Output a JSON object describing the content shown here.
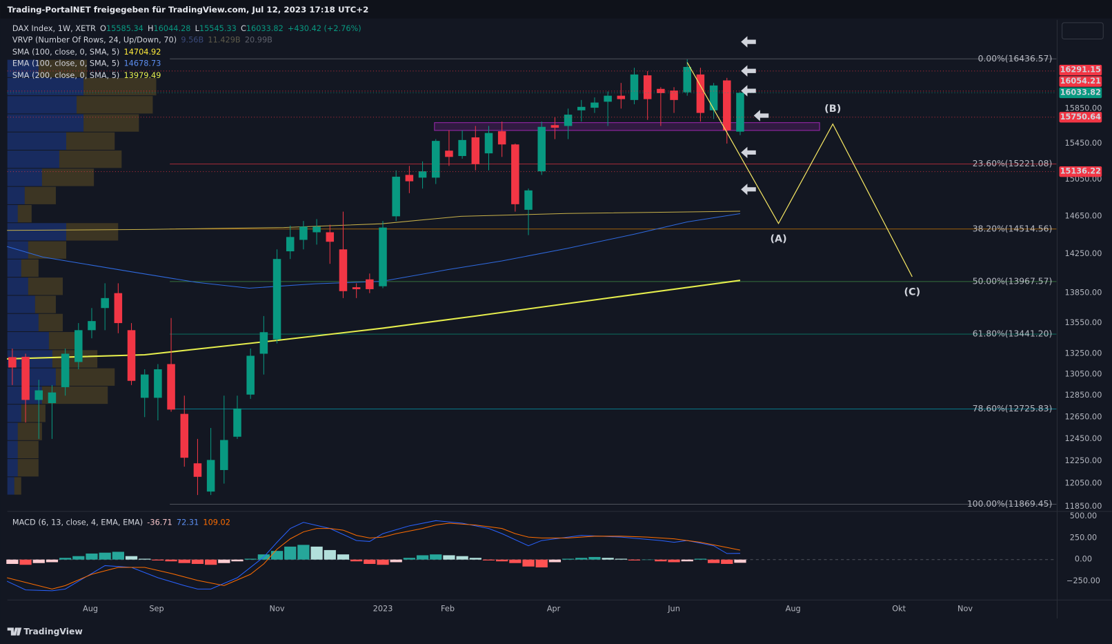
{
  "header": {
    "title": "Trading-PortalNET freigegeben für TradingView.com, Jul 12, 2023 17:18 UTC+2"
  },
  "footer": {
    "brand": "TradingView"
  },
  "chart_data": {
    "type": "candlestick",
    "log_scale": true,
    "legend": {
      "symbol": "DAX Index, 1W, XETR",
      "ohlc_labels": [
        "O",
        "H",
        "L",
        "C"
      ],
      "change": "+430.42 (+2.76%)"
    },
    "vrvp": {
      "name": "VRVP (Number Of Rows, 24, Up/Down, 70)",
      "stats": [
        "9.56B",
        "11.429B",
        "20.99B"
      ],
      "up_color": "#2962ff",
      "down_color": "#fbc02d",
      "up": [
        45,
        110,
        100,
        110,
        85,
        75,
        50,
        25,
        15,
        85,
        30,
        20,
        30,
        40,
        45,
        60,
        65,
        70,
        50,
        20,
        15,
        15,
        15,
        10
      ],
      "down": [
        70,
        105,
        110,
        80,
        70,
        90,
        75,
        45,
        20,
        75,
        55,
        25,
        50,
        30,
        35,
        40,
        65,
        85,
        95,
        35,
        35,
        30,
        30,
        10
      ]
    },
    "colors": {
      "up": "#089981",
      "down": "#f23645"
    },
    "categories": [
      null,
      null,
      null,
      null,
      null,
      null,
      null,
      null,
      null,
      null,
      null,
      null,
      null,
      null,
      null,
      null,
      null,
      null,
      null,
      null,
      null,
      null,
      null,
      null,
      null,
      null,
      null,
      null,
      null,
      null,
      null,
      null,
      null,
      null,
      null,
      null,
      null,
      null,
      null,
      null,
      null,
      null,
      null,
      null,
      null,
      null,
      null,
      null,
      null,
      null,
      null,
      null,
      null,
      null,
      null,
      null
    ],
    "open": [
      13217,
      13220,
      12810,
      12780,
      12930,
      13170,
      13480,
      13700,
      13850,
      13480,
      12830,
      12830,
      13150,
      12680,
      12230,
      11980,
      12170,
      12470,
      12860,
      13250,
      13390,
      14280,
      14400,
      14480,
      14480,
      14300,
      13910,
      13990,
      13920,
      14650,
      15100,
      15070,
      15070,
      15370,
      15310,
      15520,
      15340,
      15590,
      15440,
      14720,
      15140,
      15660,
      15650,
      15830,
      15860,
      15930,
      16000,
      15950,
      16240,
      16080,
      16060,
      16040,
      16250,
      15830,
      16180,
      15585.34
    ],
    "high": [
      13300,
      13250,
      13000,
      12950,
      13300,
      13550,
      13700,
      13950,
      13950,
      13550,
      13100,
      13150,
      13600,
      12850,
      12450,
      12550,
      12850,
      12850,
      13300,
      13620,
      14300,
      14550,
      14600,
      14620,
      14560,
      14700,
      13950,
      14050,
      14600,
      15150,
      15200,
      15250,
      15500,
      15600,
      15600,
      15650,
      15650,
      15700,
      15450,
      14950,
      15700,
      15750,
      15850,
      15950,
      15980,
      16050,
      16150,
      16330,
      16290,
      16100,
      16100,
      16430,
      16330,
      16150,
      16210,
      16044.28
    ],
    "low": [
      12950,
      12600,
      12450,
      12450,
      12850,
      13100,
      13400,
      13480,
      13450,
      12950,
      12650,
      12620,
      12700,
      12200,
      11950,
      11950,
      12050,
      12450,
      12820,
      13050,
      13350,
      14200,
      14300,
      14350,
      14150,
      13800,
      13800,
      13850,
      13900,
      14600,
      14900,
      14950,
      15000,
      15200,
      15280,
      15150,
      15150,
      15300,
      14700,
      14450,
      15100,
      15500,
      15500,
      15700,
      15800,
      15650,
      15850,
      15900,
      15720,
      15650,
      15800,
      16000,
      15700,
      15730,
      15450,
      15545.33
    ],
    "close": [
      13117,
      12810,
      12900,
      12880,
      13250,
      13480,
      13570,
      13800,
      13550,
      12990,
      13050,
      13100,
      12720,
      12280,
      12110,
      12260,
      12440,
      12730,
      13230,
      13460,
      14200,
      14430,
      14540,
      14540,
      14380,
      13870,
      13890,
      13890,
      14530,
      15080,
      15030,
      15140,
      15480,
      15300,
      15490,
      15220,
      15570,
      15440,
      14780,
      14930,
      15640,
      15630,
      15780,
      15870,
      15920,
      16000,
      15960,
      16250,
      15960,
      16030,
      15950,
      16340,
      15800,
      16120,
      15600,
      16033.82
    ],
    "lines": [
      {
        "name": "SMA (100, close, 0, SMA, 5)",
        "color": "#ffeb3b",
        "line_color": "#c9b24a",
        "width": 1,
        "x": [
          -0.4,
          10,
          20.5,
          27.9,
          33.9,
          41.9,
          55
        ],
        "values": [
          14500,
          14510,
          14530,
          14570,
          14650,
          14680,
          14704.92
        ]
      },
      {
        "name": "EMA (100, close, 0, SMA, 5)",
        "color": "#5b8def",
        "line_color": "#2f6ae0",
        "width": 1,
        "x": [
          -0.4,
          2.3,
          8.9,
          13.9,
          17.9,
          22.9,
          27.9,
          32.9,
          37,
          41.9,
          47,
          51,
          55
        ],
        "values": [
          14330,
          14220,
          14070,
          13960,
          13900,
          13945,
          13970,
          14090,
          14180,
          14310,
          14460,
          14590,
          14678.73
        ]
      },
      {
        "name": "SMA (200, close, 0, SMA, 5)",
        "color": "#e6ee4d",
        "line_color": "#e6ee4d",
        "width": 2,
        "x": [
          -0.4,
          10,
          20,
          28,
          35,
          45,
          55
        ],
        "values": [
          13200,
          13240,
          13380,
          13500,
          13620,
          13800,
          13979.49
        ]
      }
    ],
    "fib": {
      "start": 11.9,
      "levels": [
        {
          "value": 16436.57,
          "label": "0.00%(16436.57)",
          "color": "#787b86"
        },
        {
          "value": 15221.08,
          "label": "23.60%(15221.08)",
          "color": "#f23645"
        },
        {
          "value": 14514.56,
          "label": "38.20%(14514.56)",
          "color": "#ff9800"
        },
        {
          "value": 13967.57,
          "label": "50.00%(13967.57)",
          "color": "#4caf50"
        },
        {
          "value": 13441.2,
          "label": "61.80%(13441.20)",
          "color": "#089981"
        },
        {
          "value": 12725.83,
          "label": "78.60%(12725.83)",
          "color": "#00bcd4"
        },
        {
          "value": 11869.45,
          "label": "100.00%(11869.45)",
          "color": "#787b86"
        }
      ]
    },
    "zone": {
      "x": [
        31.9,
        61
      ],
      "y": [
        15599,
        15688
      ],
      "color": "#9c27b0"
    },
    "wave": {
      "color": "#f5e663",
      "x": [
        51,
        57.9,
        62,
        68
      ],
      "y": [
        16394,
        14573,
        15672,
        14017
      ],
      "labels": [
        null,
        "(A)",
        "(B)",
        "(C)"
      ]
    },
    "price_tags": [
      {
        "value": 16291.15,
        "color": "#f23645"
      },
      {
        "value": 16054.21,
        "color": "#f23645"
      },
      {
        "value": 16033.82,
        "color": "#089981"
      },
      {
        "value": 15750.64,
        "color": "#f23645"
      },
      {
        "value": 15136.22,
        "color": "#f23645"
      }
    ],
    "xlim": [
      -0.375,
      78.9
    ],
    "xticks": [
      {
        "value": 5.9,
        "label": "Aug"
      },
      {
        "value": 10.9,
        "label": "Sep"
      },
      {
        "value": 20,
        "label": "Nov"
      },
      {
        "value": 28,
        "label": "2023"
      },
      {
        "value": 32.9,
        "label": "Feb"
      },
      {
        "value": 40.9,
        "label": "Apr"
      },
      {
        "value": 50,
        "label": "Jun"
      },
      {
        "value": 59,
        "label": "Aug"
      },
      {
        "value": 67,
        "label": "Okt"
      },
      {
        "value": 72,
        "label": "Nov"
      }
    ],
    "ylim": [
      11814,
      16912
    ],
    "yticks": [
      {
        "value": 15850,
        "label": "15850.00"
      },
      {
        "value": 15450,
        "label": "15450.00"
      },
      {
        "value": 15050,
        "label": "15050.00"
      },
      {
        "value": 14650,
        "label": "14650.00"
      },
      {
        "value": 14250,
        "label": "14250.00"
      },
      {
        "value": 13850,
        "label": "13850.00"
      },
      {
        "value": 13550,
        "label": "13550.00"
      },
      {
        "value": 13250,
        "label": "13250.00"
      },
      {
        "value": 13050,
        "label": "13050.00"
      },
      {
        "value": 12850,
        "label": "12850.00"
      },
      {
        "value": 12650,
        "label": "12650.00"
      },
      {
        "value": 12450,
        "label": "12450.00"
      },
      {
        "value": 12250,
        "label": "12250.00"
      },
      {
        "value": 12050,
        "label": "12050.00"
      },
      {
        "value": 11850,
        "label": "11850.00"
      }
    ],
    "macd": {
      "name": "MACD (6, 13, close, 4, EMA, EMA)",
      "ylim": [
        -459,
        549
      ],
      "yticks": [
        {
          "value": 500,
          "label": "500.00"
        },
        {
          "value": 250,
          "label": "250.00"
        },
        {
          "value": 0,
          "label": "0.00"
        },
        {
          "value": -250,
          "label": "−250.00"
        }
      ],
      "hist_colors": [
        "#26a69a",
        "#b2dfdb",
        "#ff5252",
        "#ffcdd2"
      ],
      "hist": [
        -50,
        -60,
        -40,
        -30,
        20,
        40,
        70,
        80,
        90,
        40,
        10,
        -10,
        -20,
        -40,
        -50,
        -60,
        -40,
        -20,
        10,
        60,
        100,
        150,
        170,
        150,
        110,
        60,
        -20,
        -50,
        -60,
        -30,
        20,
        50,
        60,
        50,
        40,
        20,
        -10,
        -20,
        -40,
        -80,
        -90,
        -30,
        10,
        20,
        30,
        20,
        10,
        -10,
        0,
        -20,
        -30,
        -20,
        10,
        -40,
        -50,
        -36.71
      ],
      "macd_line": {
        "color": "#2962ff",
        "x": [
          -0.4,
          1,
          3,
          4,
          6,
          7,
          9,
          11,
          13,
          14,
          15,
          17,
          19,
          20,
          21,
          22,
          24,
          26,
          27,
          28,
          30,
          32,
          34,
          36,
          37,
          39,
          40,
          43,
          46,
          49,
          50,
          51,
          53,
          54,
          55
        ],
        "values": [
          -250,
          -350,
          -360,
          -340,
          -160,
          -70,
          -90,
          -210,
          -300,
          -340,
          -340,
          -210,
          30,
          200,
          360,
          430,
          360,
          220,
          210,
          300,
          390,
          450,
          420,
          360,
          300,
          160,
          220,
          280,
          260,
          220,
          200,
          220,
          160,
          70,
          72.31
        ]
      },
      "signal_line": {
        "color": "#ff6d00",
        "x": [
          -0.4,
          3,
          4,
          6,
          8,
          10,
          12,
          14,
          16,
          18,
          19,
          20,
          21,
          22,
          23,
          24,
          25,
          26,
          27,
          28,
          29,
          31,
          32,
          33,
          35,
          37,
          38,
          39,
          40,
          42,
          44,
          46,
          48,
          50,
          51,
          52,
          53,
          54,
          55
        ],
        "values": [
          -210,
          -340,
          -300,
          -170,
          -90,
          -90,
          -160,
          -240,
          -300,
          -170,
          -50,
          120,
          240,
          320,
          360,
          360,
          340,
          280,
          250,
          260,
          300,
          360,
          400,
          420,
          400,
          360,
          300,
          260,
          250,
          250,
          270,
          270,
          260,
          240,
          220,
          200,
          170,
          140,
          109.02
        ]
      }
    }
  }
}
